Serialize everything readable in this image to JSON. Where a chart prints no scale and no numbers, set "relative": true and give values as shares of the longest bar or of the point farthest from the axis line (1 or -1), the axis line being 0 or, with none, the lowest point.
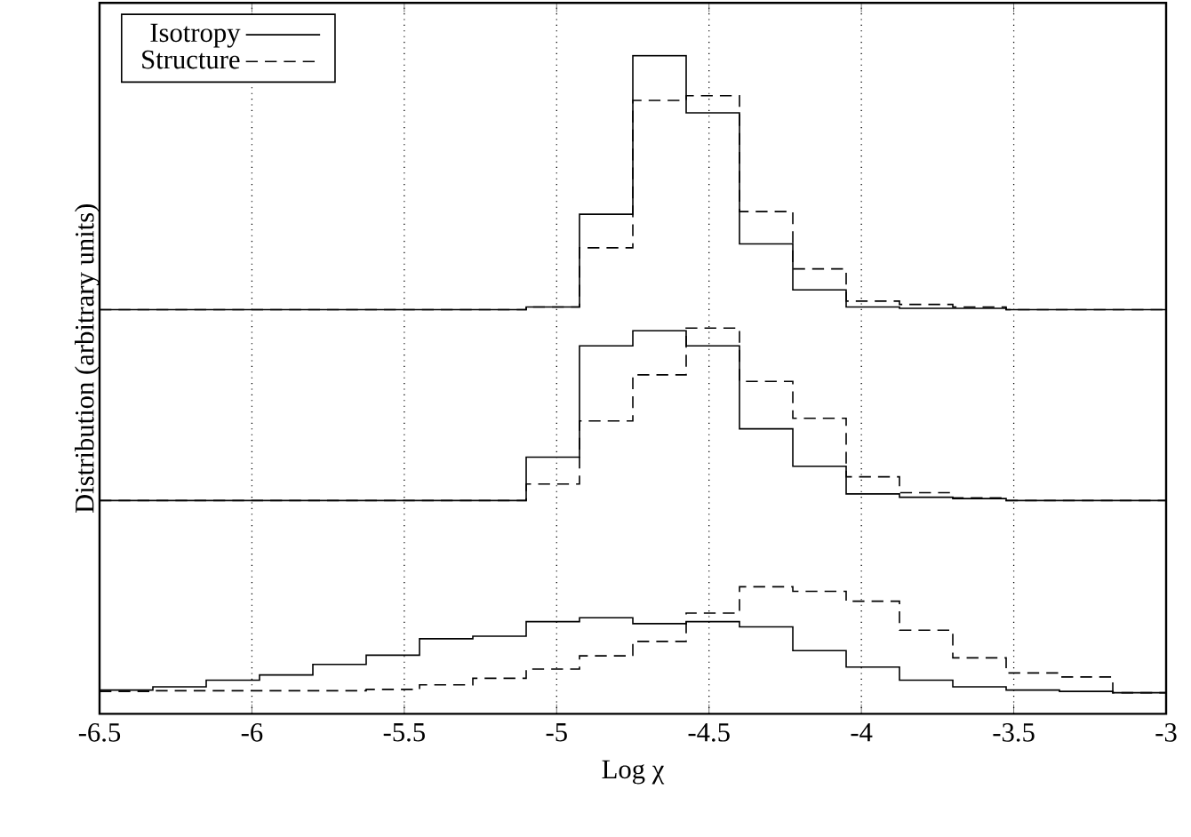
{
  "chart_data": {
    "type": "step",
    "relative": true,
    "xlabel": "Log χ",
    "ylabel": "Distribution (arbitrary units)",
    "x": [
      -6.5,
      -6.325,
      -6.15,
      -5.975,
      -5.8,
      -5.625,
      -5.45,
      -5.275,
      -5.1,
      -4.925,
      -4.75,
      -4.575,
      -4.4,
      -4.225,
      -4.05,
      -3.875,
      -3.7,
      -3.525,
      -3.35,
      -3.175,
      -3.0
    ],
    "xlim": [
      -6.5,
      -3
    ],
    "xticks": [
      {
        "value": -6.5,
        "label": "-6.5"
      },
      {
        "value": -6,
        "label": "-6"
      },
      {
        "value": -5.5,
        "label": "-5.5"
      },
      {
        "value": -5,
        "label": "-5"
      },
      {
        "value": -4.5,
        "label": "-4.5"
      },
      {
        "value": -4,
        "label": "-4"
      },
      {
        "value": -3.5,
        "label": "-3.5"
      },
      {
        "value": -3,
        "label": "-3"
      }
    ],
    "grid": "x",
    "legend": "top left",
    "tick_labels": "x",
    "series": [
      {
        "name": "Isotropy",
        "color": "#000000",
        "line_style": "solid",
        "values": [
          0.614,
          0.614,
          0.614,
          0.614,
          0.614,
          0.614,
          0.614,
          0.614,
          0.618,
          0.759,
          1.0,
          0.913,
          0.714,
          0.644,
          0.618,
          0.616,
          0.616,
          0.614,
          0.614,
          0.614,
          0.614
        ]
      },
      {
        "name": "Structure",
        "color": "#000000",
        "line_style": "dashed",
        "values": [
          0.614,
          0.614,
          0.614,
          0.614,
          0.614,
          0.614,
          0.614,
          0.614,
          0.618,
          0.708,
          0.932,
          0.939,
          0.763,
          0.676,
          0.627,
          0.622,
          0.618,
          0.614,
          0.614,
          0.614,
          0.614
        ]
      },
      {
        "color": "#000000",
        "line_style": "solid",
        "values": [
          0.324,
          0.324,
          0.324,
          0.324,
          0.324,
          0.324,
          0.324,
          0.324,
          0.39,
          0.559,
          0.582,
          0.559,
          0.433,
          0.376,
          0.334,
          0.329,
          0.327,
          0.324,
          0.324,
          0.324,
          0.324
        ]
      },
      {
        "color": "#000000",
        "line_style": "dashed",
        "values": [
          0.324,
          0.324,
          0.324,
          0.324,
          0.324,
          0.324,
          0.324,
          0.324,
          0.349,
          0.445,
          0.515,
          0.586,
          0.505,
          0.449,
          0.36,
          0.336,
          0.328,
          0.324,
          0.324,
          0.324,
          0.324
        ]
      },
      {
        "color": "#000000",
        "line_style": "solid",
        "values": [
          0.036,
          0.041,
          0.051,
          0.059,
          0.075,
          0.089,
          0.114,
          0.118,
          0.14,
          0.146,
          0.137,
          0.14,
          0.132,
          0.096,
          0.071,
          0.051,
          0.041,
          0.036,
          0.034,
          0.032,
          0.032
        ]
      },
      {
        "color": "#000000",
        "line_style": "dashed",
        "values": [
          0.034,
          0.035,
          0.035,
          0.035,
          0.035,
          0.037,
          0.044,
          0.054,
          0.068,
          0.088,
          0.11,
          0.153,
          0.193,
          0.186,
          0.171,
          0.127,
          0.085,
          0.062,
          0.056,
          0.032,
          0.032
        ]
      }
    ]
  }
}
